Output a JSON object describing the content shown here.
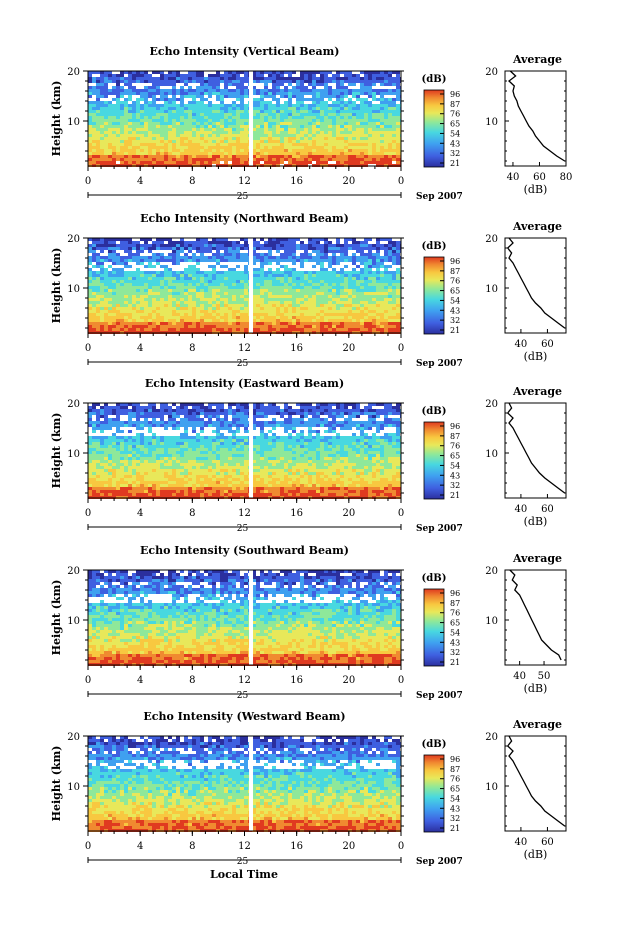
{
  "x_label": "Local Time",
  "date_label": "Sep 2007",
  "day_label": "25",
  "colorbar_unit": "(dB)",
  "colorbar_ticks": [
    "96",
    "87",
    "76",
    "65",
    "54",
    "43",
    "32",
    "21"
  ],
  "avg_title": "Average",
  "avg_xlabel": "(dB)",
  "y_label": "Height (km)",
  "chart_data": [
    {
      "type": "heatmap",
      "title": "Echo Intensity (Vertical Beam)",
      "ylabel": "Height (km)",
      "x_ticks": [
        "0",
        "4",
        "8",
        "12",
        "16",
        "20",
        "0"
      ],
      "y_ticks": [
        "20",
        "10"
      ],
      "xlim": [
        0,
        24
      ],
      "ylim": [
        1,
        20
      ],
      "data_gap_hour": 12.5,
      "profile": {
        "title": "Average",
        "xlabel": "(dB)",
        "x_ticks": [
          "40",
          "60",
          "80"
        ],
        "xlim": [
          34,
          80
        ],
        "y_ticks": [
          "20",
          "10"
        ],
        "heights_km": [
          2,
          3,
          4,
          5,
          6,
          7,
          8,
          9,
          10,
          11,
          12,
          13,
          14,
          15,
          16,
          17,
          18,
          19,
          20
        ],
        "values_db": [
          79,
          73,
          68,
          63,
          60,
          57,
          55,
          52,
          50,
          48,
          46,
          44,
          43,
          41,
          40,
          41,
          37,
          42,
          38
        ]
      }
    },
    {
      "type": "heatmap",
      "title": "Echo Intensity (Northward Beam)",
      "ylabel": "Height (km)",
      "x_ticks": [
        "0",
        "4",
        "8",
        "12",
        "16",
        "20",
        "0"
      ],
      "y_ticks": [
        "20",
        "10"
      ],
      "xlim": [
        0,
        24
      ],
      "ylim": [
        1,
        20
      ],
      "data_gap_hour": 12.5,
      "profile": {
        "title": "Average",
        "xlabel": "(dB)",
        "x_ticks": [
          "40",
          "60"
        ],
        "xlim": [
          28,
          74
        ],
        "y_ticks": [
          "20",
          "10"
        ],
        "heights_km": [
          2,
          3,
          4,
          5,
          6,
          7,
          8,
          9,
          10,
          11,
          12,
          13,
          14,
          15,
          16,
          17,
          18,
          19,
          20
        ],
        "values_db": [
          73,
          68,
          63,
          58,
          55,
          51,
          48,
          46,
          44,
          42,
          40,
          38,
          36,
          34,
          31,
          33,
          30,
          34,
          31
        ]
      }
    },
    {
      "type": "heatmap",
      "title": "Echo Intensity (Eastward Beam)",
      "ylabel": "Height (km)",
      "x_ticks": [
        "0",
        "4",
        "8",
        "12",
        "16",
        "20",
        "0"
      ],
      "y_ticks": [
        "20",
        "10"
      ],
      "xlim": [
        0,
        24
      ],
      "ylim": [
        1,
        20
      ],
      "data_gap_hour": 12.5,
      "profile": {
        "title": "Average",
        "xlabel": "(dB)",
        "x_ticks": [
          "40",
          "60"
        ],
        "xlim": [
          28,
          74
        ],
        "y_ticks": [
          "20",
          "10"
        ],
        "heights_km": [
          2,
          3,
          4,
          5,
          6,
          7,
          8,
          9,
          10,
          11,
          12,
          13,
          14,
          15,
          16,
          17,
          18,
          19,
          20
        ],
        "values_db": [
          73,
          68,
          63,
          58,
          54,
          51,
          48,
          46,
          44,
          42,
          40,
          38,
          36,
          34,
          31,
          34,
          30,
          33,
          31
        ]
      }
    },
    {
      "type": "heatmap",
      "title": "Echo Intensity (Southward Beam)",
      "ylabel": "Height (km)",
      "x_ticks": [
        "0",
        "4",
        "8",
        "12",
        "16",
        "20",
        "0"
      ],
      "y_ticks": [
        "20",
        "10"
      ],
      "xlim": [
        0,
        24
      ],
      "ylim": [
        1,
        20
      ],
      "data_gap_hour": 12.5,
      "profile": {
        "title": "Average",
        "xlabel": "(dB)",
        "x_ticks": [
          "40",
          "50"
        ],
        "xlim": [
          34,
          59
        ],
        "y_ticks": [
          "20",
          "10"
        ],
        "heights_km": [
          2,
          3,
          4,
          5,
          6,
          7,
          8,
          9,
          10,
          11,
          12,
          13,
          14,
          15,
          16,
          17,
          18,
          19,
          20
        ],
        "values_db": [
          57,
          56,
          53,
          51,
          49,
          48,
          47,
          46,
          45,
          44,
          43,
          42,
          41,
          40,
          38,
          39,
          37,
          38,
          36
        ]
      }
    },
    {
      "type": "heatmap",
      "title": "Echo Intensity (Westward Beam)",
      "ylabel": "Height (km)",
      "x_ticks": [
        "0",
        "4",
        "8",
        "12",
        "16",
        "20",
        "0"
      ],
      "y_ticks": [
        "20",
        "10"
      ],
      "xlim": [
        0,
        24
      ],
      "ylim": [
        1,
        20
      ],
      "data_gap_hour": 12.5,
      "profile": {
        "title": "Average",
        "xlabel": "(dB)",
        "x_ticks": [
          "40",
          "60"
        ],
        "xlim": [
          28,
          74
        ],
        "y_ticks": [
          "20",
          "10"
        ],
        "heights_km": [
          2,
          3,
          4,
          5,
          6,
          7,
          8,
          9,
          10,
          11,
          12,
          13,
          14,
          15,
          16,
          17,
          18,
          19,
          20
        ],
        "values_db": [
          73,
          68,
          63,
          58,
          55,
          51,
          48,
          46,
          44,
          42,
          40,
          38,
          36,
          34,
          31,
          34,
          30,
          33,
          31
        ]
      }
    }
  ],
  "colors": {
    "ramp": [
      "#2b2f9e",
      "#3f5fe0",
      "#3fa0f0",
      "#48d8e0",
      "#8ee89a",
      "#e8e85a",
      "#f8c840",
      "#f08a30",
      "#e03a20"
    ]
  }
}
